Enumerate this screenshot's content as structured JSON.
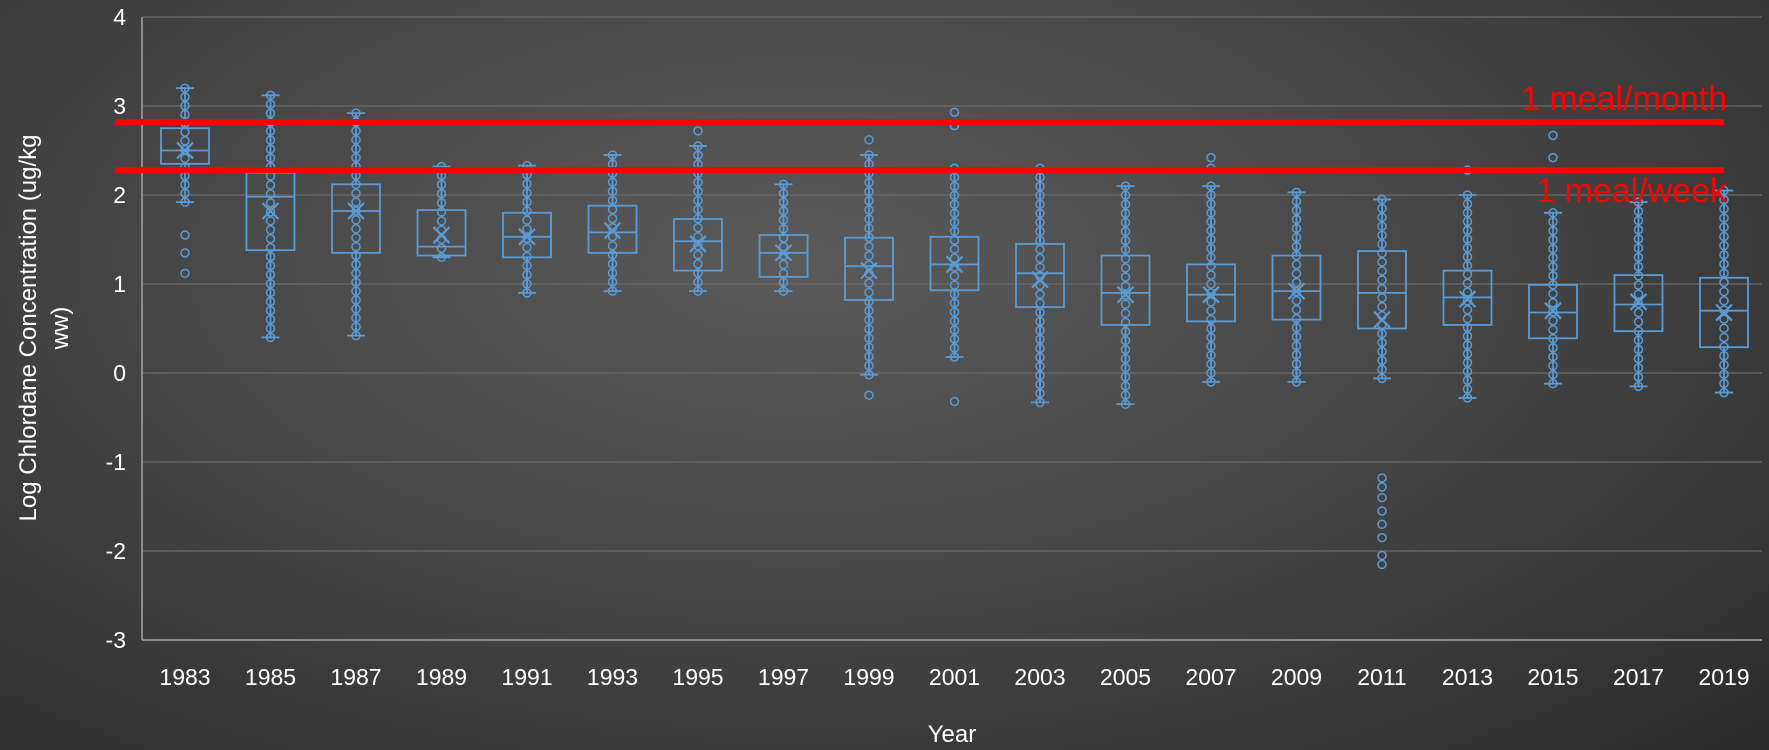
{
  "chart_data": {
    "type": "box",
    "title": "",
    "xlabel": "Year",
    "ylabel_lines": [
      "Log Chlordane Concentration (ug/kg",
      "ww)"
    ],
    "ylim": [
      -3,
      4
    ],
    "yticks": [
      -3,
      -2,
      -1,
      0,
      1,
      2,
      3,
      4
    ],
    "grid": true,
    "colors": {
      "box": "#5b9bd5",
      "reference": "#ff0000",
      "grid": "#6a6a6a",
      "text": "#ffffff"
    },
    "reference_lines": [
      {
        "label": "1 meal/month",
        "y": 2.82
      },
      {
        "label": "1 meal/week",
        "y": 2.28
      }
    ],
    "categories": [
      "1983",
      "1985",
      "1987",
      "1989",
      "1991",
      "1993",
      "1995",
      "1997",
      "1999",
      "2001",
      "2003",
      "2005",
      "2007",
      "2009",
      "2011",
      "2013",
      "2015",
      "2017",
      "2019"
    ],
    "boxes": [
      {
        "year": "1983",
        "min": 1.92,
        "q1": 2.35,
        "median": 2.5,
        "q3": 2.75,
        "max": 3.2,
        "mean": 2.5,
        "outliers": [
          1.12,
          1.35,
          1.55
        ]
      },
      {
        "year": "1985",
        "min": 0.4,
        "q1": 1.38,
        "median": 1.98,
        "q3": 2.25,
        "max": 3.12,
        "mean": 1.82,
        "outliers": []
      },
      {
        "year": "1987",
        "min": 0.42,
        "q1": 1.35,
        "median": 1.82,
        "q3": 2.12,
        "max": 2.92,
        "mean": 1.82,
        "outliers": []
      },
      {
        "year": "1989",
        "min": 1.3,
        "q1": 1.32,
        "median": 1.42,
        "q3": 1.83,
        "max": 2.32,
        "mean": 1.55,
        "outliers": []
      },
      {
        "year": "1991",
        "min": 0.9,
        "q1": 1.3,
        "median": 1.53,
        "q3": 1.8,
        "max": 2.33,
        "mean": 1.53,
        "outliers": []
      },
      {
        "year": "1993",
        "min": 0.92,
        "q1": 1.35,
        "median": 1.58,
        "q3": 1.88,
        "max": 2.45,
        "mean": 1.6,
        "outliers": []
      },
      {
        "year": "1995",
        "min": 0.92,
        "q1": 1.15,
        "median": 1.48,
        "q3": 1.73,
        "max": 2.55,
        "mean": 1.45,
        "outliers": [
          2.72
        ]
      },
      {
        "year": "1997",
        "min": 0.92,
        "q1": 1.08,
        "median": 1.35,
        "q3": 1.55,
        "max": 2.12,
        "mean": 1.35,
        "outliers": []
      },
      {
        "year": "1999",
        "min": -0.02,
        "q1": 0.82,
        "median": 1.2,
        "q3": 1.52,
        "max": 2.45,
        "mean": 1.15,
        "outliers": [
          -0.25,
          2.62
        ]
      },
      {
        "year": "2001",
        "min": 0.18,
        "q1": 0.93,
        "median": 1.22,
        "q3": 1.53,
        "max": 2.3,
        "mean": 1.22,
        "outliers": [
          -0.32,
          2.78,
          2.93
        ]
      },
      {
        "year": "2003",
        "min": -0.33,
        "q1": 0.74,
        "median": 1.12,
        "q3": 1.45,
        "max": 2.3,
        "mean": 1.05,
        "outliers": []
      },
      {
        "year": "2005",
        "min": -0.35,
        "q1": 0.54,
        "median": 0.9,
        "q3": 1.32,
        "max": 2.1,
        "mean": 0.88,
        "outliers": []
      },
      {
        "year": "2007",
        "min": -0.1,
        "q1": 0.58,
        "median": 0.88,
        "q3": 1.22,
        "max": 2.1,
        "mean": 0.88,
        "outliers": [
          2.3,
          2.42
        ]
      },
      {
        "year": "2009",
        "min": -0.1,
        "q1": 0.6,
        "median": 0.92,
        "q3": 1.32,
        "max": 2.03,
        "mean": 0.92,
        "outliers": []
      },
      {
        "year": "2011",
        "min": -0.06,
        "q1": 0.5,
        "median": 0.9,
        "q3": 1.37,
        "max": 1.95,
        "mean": 0.6,
        "outliers": [
          -2.15,
          -2.05,
          -1.85,
          -1.7,
          -1.55,
          -1.4,
          -1.28,
          -1.18
        ]
      },
      {
        "year": "2013",
        "min": -0.28,
        "q1": 0.54,
        "median": 0.85,
        "q3": 1.15,
        "max": 2.0,
        "mean": 0.83,
        "outliers": [
          2.28
        ]
      },
      {
        "year": "2015",
        "min": -0.12,
        "q1": 0.39,
        "median": 0.68,
        "q3": 0.99,
        "max": 1.8,
        "mean": 0.7,
        "outliers": [
          2.42,
          2.67
        ]
      },
      {
        "year": "2017",
        "min": -0.15,
        "q1": 0.47,
        "median": 0.77,
        "q3": 1.1,
        "max": 1.92,
        "mean": 0.8,
        "outliers": []
      },
      {
        "year": "2019",
        "min": -0.22,
        "q1": 0.29,
        "median": 0.7,
        "q3": 1.07,
        "max": 2.05,
        "mean": 0.68,
        "outliers": []
      }
    ]
  }
}
